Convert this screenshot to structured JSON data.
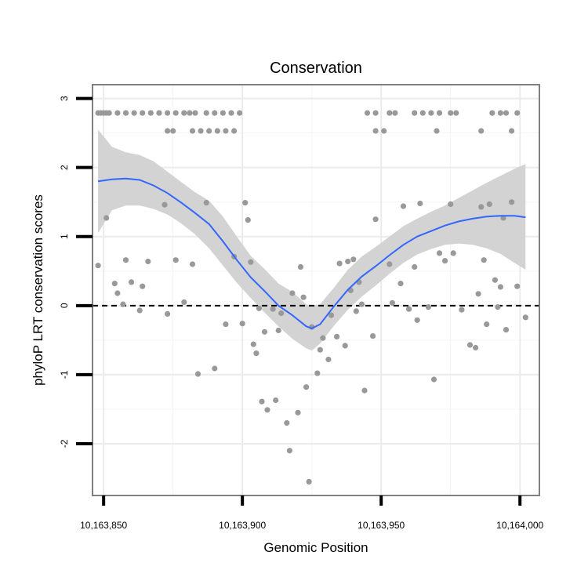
{
  "chart_data": {
    "type": "scatter",
    "title": "Conservation",
    "xlabel": "Genomic Position",
    "ylabel": "phyloP LRT conservation scores",
    "xlim": [
      10163846,
      10164007
    ],
    "ylim": [
      -2.75,
      3.2
    ],
    "x_ticks": [
      {
        "value": 10163850,
        "label": "10,163,850"
      },
      {
        "value": 10163900,
        "label": "10,163,900"
      },
      {
        "value": 10163950,
        "label": "10,163,950"
      },
      {
        "value": 10164000,
        "label": "10,164,000"
      }
    ],
    "y_ticks": [
      {
        "value": -2,
        "label": "-2"
      },
      {
        "value": -1,
        "label": "-1"
      },
      {
        "value": 0,
        "label": "0"
      },
      {
        "value": 1,
        "label": "1"
      },
      {
        "value": 2,
        "label": "2"
      },
      {
        "value": 3,
        "label": "3"
      }
    ],
    "reference_line": {
      "y": 0,
      "style": "dashed"
    },
    "grid": true,
    "colors": {
      "points": "#999999",
      "smooth": "#3366ff",
      "ribbon": "#d3d3d3",
      "reference": "#000000",
      "panel_border": "#7f7f7f"
    },
    "points": [
      [
        10163848,
        2.79
      ],
      [
        10163849,
        2.79
      ],
      [
        10163850,
        2.79
      ],
      [
        10163851,
        2.79
      ],
      [
        10163852,
        2.79
      ],
      [
        10163855,
        2.79
      ],
      [
        10163858,
        2.79
      ],
      [
        10163861,
        2.79
      ],
      [
        10163864,
        2.79
      ],
      [
        10163867,
        2.79
      ],
      [
        10163870,
        2.79
      ],
      [
        10163873,
        2.79
      ],
      [
        10163876,
        2.79
      ],
      [
        10163879,
        2.79
      ],
      [
        10163881,
        2.79
      ],
      [
        10163883,
        2.79
      ],
      [
        10163887,
        2.79
      ],
      [
        10163890,
        2.79
      ],
      [
        10163893,
        2.79
      ],
      [
        10163896,
        2.79
      ],
      [
        10163899,
        2.79
      ],
      [
        10163873,
        2.53
      ],
      [
        10163875,
        2.53
      ],
      [
        10163882,
        2.53
      ],
      [
        10163885,
        2.53
      ],
      [
        10163888,
        2.53
      ],
      [
        10163891,
        2.53
      ],
      [
        10163894,
        2.53
      ],
      [
        10163897,
        2.53
      ],
      [
        10163945,
        2.79
      ],
      [
        10163948,
        2.79
      ],
      [
        10163953,
        2.79
      ],
      [
        10163955,
        2.79
      ],
      [
        10163962,
        2.79
      ],
      [
        10163965,
        2.79
      ],
      [
        10163968,
        2.79
      ],
      [
        10163971,
        2.79
      ],
      [
        10163975,
        2.79
      ],
      [
        10163977,
        2.79
      ],
      [
        10163990,
        2.79
      ],
      [
        10163993,
        2.79
      ],
      [
        10163995,
        2.79
      ],
      [
        10163999,
        2.79
      ],
      [
        10163948,
        2.53
      ],
      [
        10163951,
        2.53
      ],
      [
        10163970,
        2.53
      ],
      [
        10163986,
        2.53
      ],
      [
        10163997,
        2.53
      ],
      [
        10163848,
        0.58
      ],
      [
        10163851,
        1.27
      ],
      [
        10163854,
        0.32
      ],
      [
        10163855,
        0.18
      ],
      [
        10163857,
        0.02
      ],
      [
        10163858,
        0.66
      ],
      [
        10163860,
        0.34
      ],
      [
        10163863,
        -0.07
      ],
      [
        10163864,
        0.28
      ],
      [
        10163866,
        0.64
      ],
      [
        10163872,
        1.46
      ],
      [
        10163873,
        -0.12
      ],
      [
        10163876,
        0.66
      ],
      [
        10163879,
        0.05
      ],
      [
        10163882,
        0.6
      ],
      [
        10163884,
        -0.99
      ],
      [
        10163887,
        1.49
      ],
      [
        10163890,
        -0.91
      ],
      [
        10163894,
        -0.27
      ],
      [
        10163897,
        0.71
      ],
      [
        10163900,
        -0.26
      ],
      [
        10163901,
        1.49
      ],
      [
        10163902,
        1.24
      ],
      [
        10163903,
        0.63
      ],
      [
        10163904,
        -0.56
      ],
      [
        10163905,
        -0.69
      ],
      [
        10163906,
        -0.04
      ],
      [
        10163907,
        -1.39
      ],
      [
        10163908,
        -0.38
      ],
      [
        10163909,
        -1.51
      ],
      [
        10163911,
        -0.05
      ],
      [
        10163912,
        -1.37
      ],
      [
        10163913,
        -0.36
      ],
      [
        10163914,
        -0.11
      ],
      [
        10163916,
        -1.7
      ],
      [
        10163917,
        -2.1
      ],
      [
        10163918,
        0.18
      ],
      [
        10163920,
        -1.55
      ],
      [
        10163921,
        0.56
      ],
      [
        10163922,
        0.12
      ],
      [
        10163923,
        -1.18
      ],
      [
        10163924,
        -2.55
      ],
      [
        10163925,
        -0.31
      ],
      [
        10163927,
        -0.98
      ],
      [
        10163928,
        -0.64
      ],
      [
        10163929,
        -0.47
      ],
      [
        10163931,
        -0.78
      ],
      [
        10163932,
        -0.14
      ],
      [
        10163934,
        -0.45
      ],
      [
        10163935,
        0.61
      ],
      [
        10163937,
        -0.58
      ],
      [
        10163938,
        0.64
      ],
      [
        10163939,
        0.22
      ],
      [
        10163940,
        0.67
      ],
      [
        10163941,
        -0.08
      ],
      [
        10163942,
        0.34
      ],
      [
        10163943,
        0.02
      ],
      [
        10163944,
        -1.23
      ],
      [
        10163947,
        -0.44
      ],
      [
        10163948,
        1.25
      ],
      [
        10163953,
        0.6
      ],
      [
        10163954,
        0.04
      ],
      [
        10163957,
        0.32
      ],
      [
        10163958,
        1.44
      ],
      [
        10163960,
        -0.05
      ],
      [
        10163962,
        0.56
      ],
      [
        10163963,
        -0.21
      ],
      [
        10163964,
        1.48
      ],
      [
        10163967,
        -0.02
      ],
      [
        10163969,
        -1.07
      ],
      [
        10163971,
        0.76
      ],
      [
        10163973,
        0.65
      ],
      [
        10163975,
        1.47
      ],
      [
        10163976,
        0.76
      ],
      [
        10163979,
        -0.06
      ],
      [
        10163982,
        -0.57
      ],
      [
        10163984,
        -0.61
      ],
      [
        10163985,
        0.17
      ],
      [
        10163986,
        1.43
      ],
      [
        10163987,
        0.66
      ],
      [
        10163988,
        -0.27
      ],
      [
        10163989,
        1.47
      ],
      [
        10163991,
        0.37
      ],
      [
        10163992,
        -0.02
      ],
      [
        10163993,
        0.27
      ],
      [
        10163994,
        1.27
      ],
      [
        10163995,
        -0.35
      ],
      [
        10163997,
        1.5
      ],
      [
        10163999,
        0.28
      ],
      [
        10164002,
        -0.17
      ]
    ],
    "smooth": {
      "x": [
        10163848,
        10163853,
        10163858,
        10163863,
        10163868,
        10163873,
        10163878,
        10163883,
        10163888,
        10163893,
        10163898,
        10163903,
        10163908,
        10163913,
        10163918,
        10163923,
        10163925,
        10163928,
        10163933,
        10163938,
        10163943,
        10163948,
        10163953,
        10163958,
        10163963,
        10163968,
        10163973,
        10163978,
        10163983,
        10163988,
        10163993,
        10163998,
        10164002
      ],
      "y": [
        1.8,
        1.83,
        1.84,
        1.82,
        1.74,
        1.63,
        1.49,
        1.34,
        1.18,
        0.93,
        0.66,
        0.41,
        0.21,
        0.0,
        -0.14,
        -0.3,
        -0.33,
        -0.27,
        -0.01,
        0.23,
        0.42,
        0.57,
        0.73,
        0.88,
        1.0,
        1.08,
        1.16,
        1.22,
        1.26,
        1.29,
        1.3,
        1.3,
        1.28
      ],
      "ribbon_lower": [
        1.05,
        1.38,
        1.45,
        1.45,
        1.4,
        1.32,
        1.19,
        1.03,
        0.83,
        0.58,
        0.33,
        0.11,
        -0.1,
        -0.3,
        -0.48,
        -0.62,
        -0.65,
        -0.55,
        -0.29,
        -0.06,
        0.13,
        0.29,
        0.46,
        0.62,
        0.74,
        0.82,
        0.88,
        0.9,
        0.88,
        0.83,
        0.75,
        0.62,
        0.52
      ],
      "ribbon_upper": [
        2.55,
        2.3,
        2.22,
        2.18,
        2.09,
        1.94,
        1.79,
        1.64,
        1.52,
        1.29,
        1.0,
        0.72,
        0.53,
        0.32,
        0.2,
        0.02,
        -0.01,
        0.02,
        0.26,
        0.52,
        0.71,
        0.85,
        1.0,
        1.15,
        1.26,
        1.36,
        1.45,
        1.56,
        1.67,
        1.78,
        1.88,
        1.98,
        2.05
      ]
    }
  }
}
